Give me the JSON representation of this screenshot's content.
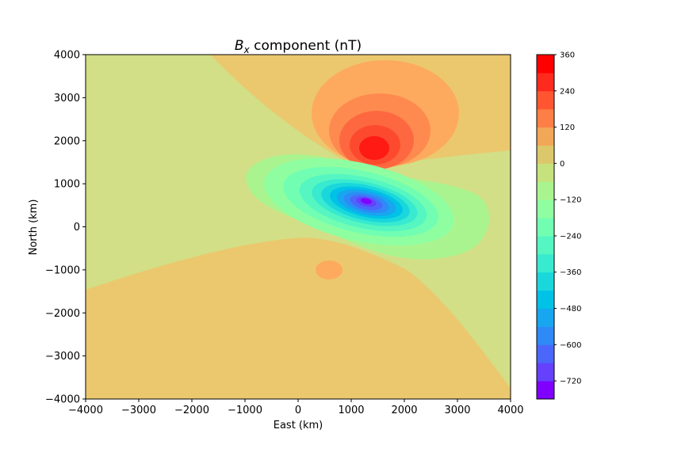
{
  "chart_data": {
    "type": "heatmap",
    "subtype": "filled-contour",
    "title_var": "B",
    "title_sub": "x",
    "title_rest": " component (nT)",
    "xlabel": "East (km)",
    "ylabel": "North (km)",
    "xlim": [
      -4000,
      4000
    ],
    "ylim": [
      -4000,
      4000
    ],
    "xticks": [
      -4000,
      -3000,
      -2000,
      -1000,
      0,
      1000,
      2000,
      3000,
      4000
    ],
    "yticks": [
      -4000,
      -3000,
      -2000,
      -1000,
      0,
      1000,
      2000,
      3000,
      4000
    ],
    "grid": false,
    "colormap": "rainbow",
    "colorbar": {
      "levels": [
        -780,
        -720,
        -660,
        -600,
        -540,
        -480,
        -420,
        -360,
        -300,
        -240,
        -180,
        -120,
        -60,
        0,
        60,
        120,
        180,
        240,
        300,
        360
      ],
      "colors": [
        "#7f00ff",
        "#6541fe",
        "#4b67fb",
        "#2f89f6",
        "#17a6ef",
        "#00c2e6",
        "#1ad7dc",
        "#38eacf",
        "#55f6c1",
        "#72feb2",
        "#8ffea1",
        "#aaf48f",
        "#c5e27d",
        "#dcc86b",
        "#f1a757",
        "#fd7f45",
        "#ff5631",
        "#ff2a1e",
        "#ff0000"
      ],
      "tick_values": [
        360,
        240,
        120,
        0,
        -120,
        -240,
        -360,
        -480,
        -600,
        -720
      ],
      "tick_labels": [
        "360",
        "240",
        "120",
        "0",
        "−120",
        "−240",
        "−360",
        "−480",
        "−600",
        "−720"
      ]
    },
    "colors": {
      "zero_band": "#ebc86e",
      "minus60_band": "#d2df86",
      "plus60_band": "#fdaa5e",
      "plus120_band": "#ff8a4f",
      "plus180_band": "#fe6840",
      "plus240_band": "#fd4a2e",
      "plus300_band": "#ff1a14"
    },
    "features": [
      {
        "kind": "maximum",
        "center": [
          1420,
          1830
        ],
        "peak_value": 330
      },
      {
        "kind": "minimum",
        "center": [
          1270,
          620
        ],
        "peak_value": -760
      },
      {
        "kind": "small positive patch",
        "center": [
          600,
          -1000
        ],
        "value_band": [
          0,
          60
        ]
      }
    ]
  }
}
